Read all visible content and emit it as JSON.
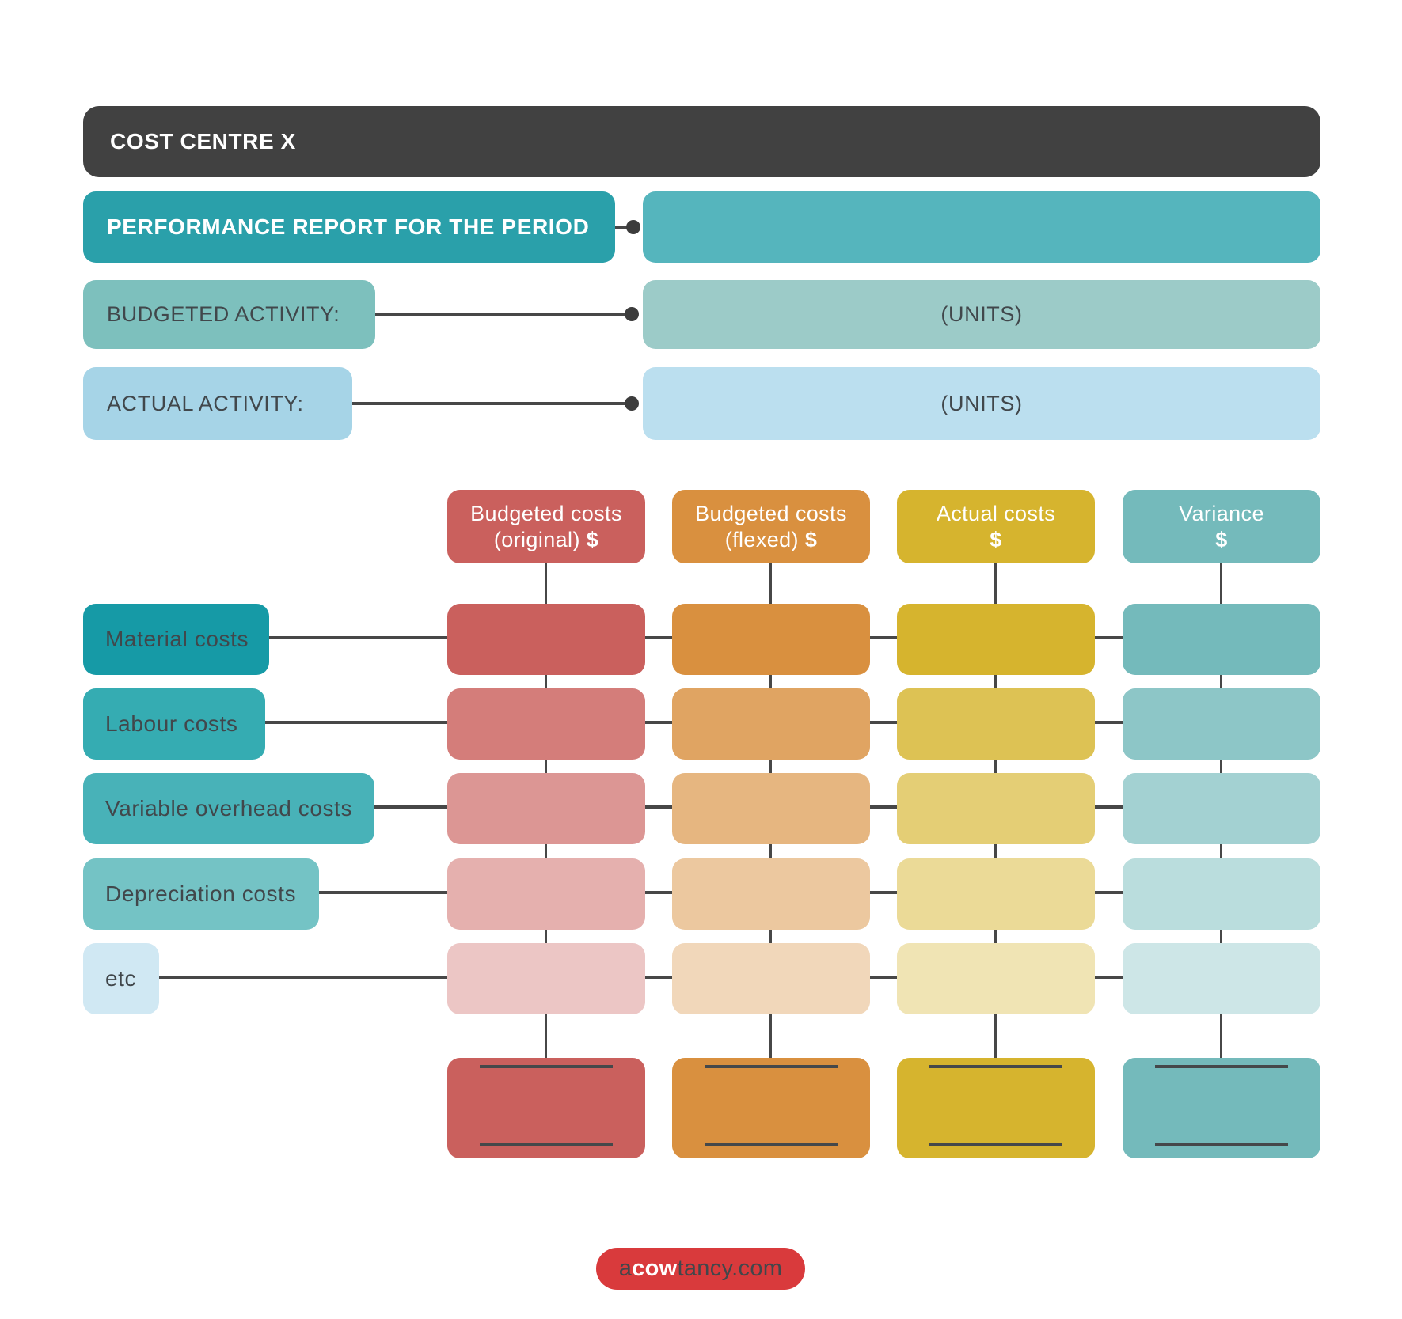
{
  "banner": {
    "title": "COST CENTRE X"
  },
  "report": {
    "title": "PERFORMANCE REPORT FOR THE PERIOD",
    "budgeted_activity": {
      "label": "BUDGETED ACTIVITY:",
      "value": "(UNITS)"
    },
    "actual_activity": {
      "label": "ACTUAL ACTIVITY:",
      "value": "(UNITS)"
    }
  },
  "table": {
    "columns": [
      {
        "label_line1": "Budgeted costs",
        "label_line2": "(original)",
        "currency": "$",
        "color": "#CA605D"
      },
      {
        "label_line1": "Budgeted costs",
        "label_line2": "(flexed)",
        "currency": "$",
        "color": "#D9903F"
      },
      {
        "label_line1": "Actual costs",
        "label_line2": "",
        "currency": "$",
        "color": "#D6B42E"
      },
      {
        "label_line1": "Variance",
        "label_line2": "",
        "currency": "$",
        "color": "#74BABB"
      }
    ],
    "rows": [
      {
        "label": "Material costs",
        "color": "#169AA6"
      },
      {
        "label": "Labour costs",
        "color": "#35ACB2"
      },
      {
        "label": "Variable overhead costs",
        "color": "#48B2B8"
      },
      {
        "label": "Depreciation costs",
        "color": "#74C3C5"
      },
      {
        "label": "etc",
        "color": "#D0E8F3"
      }
    ],
    "row_fade": [
      1,
      0.82,
      0.66,
      0.5,
      0.36
    ]
  },
  "palette": {
    "banner": "#414141",
    "report_title": "#2AA0AA",
    "report_value": "#55B5BD",
    "budgeted_label": "#7DC0BD",
    "budgeted_value": "#9CCBC8",
    "actual_label": "#A6D4E7",
    "actual_value": "#BBDFEF",
    "connector": "#474747",
    "footer": "#D93A3C"
  },
  "footer": {
    "brand_prefix": "a",
    "brand_bold": "cow",
    "brand_suffix": "tancy.com"
  }
}
